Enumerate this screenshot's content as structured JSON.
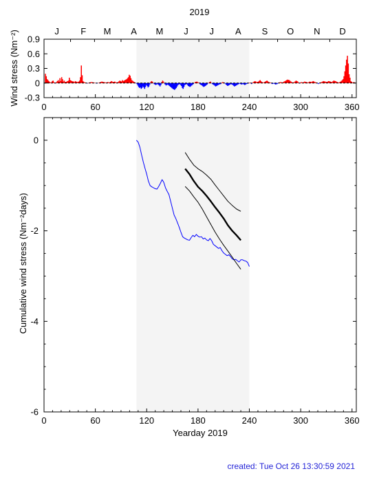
{
  "figure": {
    "year_title": "2019",
    "created_text": "created:  Tue Oct 26 13:30:59 2021",
    "colors": {
      "positive": "#ff0000",
      "negative": "#0000ff",
      "shade": "#f4f4f4",
      "observed_line": "#0000ff",
      "forecast_line": "#000000",
      "created_text": "#1f1fd6"
    }
  },
  "chart_data": [
    {
      "type": "bar",
      "name": "top",
      "title": "2019",
      "ylabel": "Wind stress (Nm⁻²)",
      "xlabel": "",
      "xlim": [
        0,
        365
      ],
      "ylim": [
        -0.3,
        0.9
      ],
      "xticks": [
        0,
        60,
        120,
        180,
        240,
        300,
        360
      ],
      "yticks": [
        -0.3,
        0,
        0.3,
        0.6,
        0.9
      ],
      "yticklabels": [
        "-0.3",
        "0",
        "0.3",
        "0.6",
        "0.9"
      ],
      "months": {
        "labels": [
          "J",
          "F",
          "M",
          "A",
          "M",
          "J",
          "J",
          "A",
          "S",
          "O",
          "N",
          "D"
        ],
        "label_days": [
          15,
          46,
          74,
          105,
          135,
          166,
          196,
          227,
          258,
          288,
          319,
          349
        ],
        "tick_days": [
          0,
          31,
          59,
          90,
          120,
          151,
          181,
          212,
          243,
          273,
          304,
          334,
          365
        ]
      },
      "shaded_x": [
        108,
        240
      ],
      "daily_points": [
        [
          1,
          0.19
        ],
        [
          2,
          0.14
        ],
        [
          3,
          0.08
        ],
        [
          5,
          0.04
        ],
        [
          6,
          0.02
        ],
        [
          8,
          0.01
        ],
        [
          9,
          0.04
        ],
        [
          10,
          0.05
        ],
        [
          11,
          0.02
        ],
        [
          12,
          -0.01
        ],
        [
          14,
          0.02
        ],
        [
          16,
          0.06
        ],
        [
          17,
          0.03
        ],
        [
          18,
          0.1
        ],
        [
          19,
          0.04
        ],
        [
          20,
          0.12
        ],
        [
          21,
          0.08
        ],
        [
          22,
          0.03
        ],
        [
          23,
          0.05
        ],
        [
          24,
          0.02
        ],
        [
          26,
          0.03
        ],
        [
          28,
          0.05
        ],
        [
          29,
          0.11
        ],
        [
          30,
          0.06
        ],
        [
          32,
          0.04
        ],
        [
          34,
          0.03
        ],
        [
          35,
          0.02
        ],
        [
          36,
          0.04
        ],
        [
          37,
          0.03
        ],
        [
          38,
          0.02
        ],
        [
          40,
          0.03
        ],
        [
          41,
          0.05
        ],
        [
          42,
          0.12
        ],
        [
          43,
          0.36
        ],
        [
          44,
          0.16
        ],
        [
          45,
          0.04
        ],
        [
          46,
          0.02
        ],
        [
          48,
          0.01
        ],
        [
          50,
          -0.01
        ],
        [
          52,
          0.01
        ],
        [
          55,
          0.02
        ],
        [
          58,
          0.01
        ],
        [
          61,
          -0.01
        ],
        [
          64,
          0.01
        ],
        [
          67,
          0.03
        ],
        [
          69,
          0.02
        ],
        [
          72,
          0.01
        ],
        [
          74,
          0.02
        ],
        [
          76,
          0.01
        ],
        [
          78,
          0.04
        ],
        [
          80,
          0.02
        ],
        [
          82,
          0.03
        ],
        [
          84,
          0.01
        ],
        [
          86,
          0.02
        ],
        [
          88,
          0.05
        ],
        [
          90,
          0.03
        ],
        [
          91,
          0.06
        ],
        [
          92,
          0.04
        ],
        [
          94,
          0.06
        ],
        [
          96,
          0.08
        ],
        [
          98,
          0.12
        ],
        [
          99,
          0.17
        ],
        [
          100,
          0.15
        ],
        [
          101,
          0.1
        ],
        [
          102,
          0.06
        ],
        [
          104,
          0.03
        ],
        [
          106,
          0.01
        ],
        [
          108,
          -0.02
        ],
        [
          109,
          -0.05
        ],
        [
          110,
          -0.08
        ],
        [
          111,
          -0.1
        ],
        [
          112,
          -0.09
        ],
        [
          113,
          -0.12
        ],
        [
          114,
          -0.1
        ],
        [
          115,
          -0.07
        ],
        [
          116,
          -0.09
        ],
        [
          117,
          -0.12
        ],
        [
          118,
          -0.08
        ],
        [
          119,
          -0.04
        ],
        [
          120,
          -0.06
        ],
        [
          121,
          -0.09
        ],
        [
          122,
          -0.07
        ],
        [
          123,
          -0.03
        ],
        [
          124,
          0.02
        ],
        [
          125,
          0.04
        ],
        [
          126,
          0.03
        ],
        [
          127,
          0.01
        ],
        [
          128,
          -0.02
        ],
        [
          130,
          -0.04
        ],
        [
          132,
          -0.02
        ],
        [
          134,
          -0.05
        ],
        [
          135,
          -0.07
        ],
        [
          136,
          -0.04
        ],
        [
          137,
          0.02
        ],
        [
          138,
          0.05
        ],
        [
          139,
          0.03
        ],
        [
          140,
          -0.01
        ],
        [
          141,
          -0.03
        ],
        [
          142,
          -0.05
        ],
        [
          144,
          -0.03
        ],
        [
          146,
          -0.06
        ],
        [
          148,
          -0.09
        ],
        [
          150,
          -0.12
        ],
        [
          151,
          -0.13
        ],
        [
          152,
          -0.14
        ],
        [
          153,
          -0.12
        ],
        [
          154,
          -0.1
        ],
        [
          155,
          -0.07
        ],
        [
          156,
          -0.04
        ],
        [
          158,
          -0.02
        ],
        [
          160,
          -0.06
        ],
        [
          161,
          -0.1
        ],
        [
          162,
          -0.12
        ],
        [
          163,
          -0.08
        ],
        [
          164,
          -0.04
        ],
        [
          166,
          -0.02
        ],
        [
          168,
          -0.06
        ],
        [
          170,
          -0.08
        ],
        [
          172,
          -0.05
        ],
        [
          174,
          -0.02
        ],
        [
          176,
          0.02
        ],
        [
          178,
          0.03
        ],
        [
          180,
          0.01
        ],
        [
          182,
          -0.03
        ],
        [
          184,
          -0.05
        ],
        [
          186,
          -0.08
        ],
        [
          188,
          -0.06
        ],
        [
          190,
          -0.03
        ],
        [
          192,
          0.01
        ],
        [
          194,
          0.03
        ],
        [
          196,
          -0.02
        ],
        [
          198,
          -0.04
        ],
        [
          200,
          -0.07
        ],
        [
          202,
          -0.05
        ],
        [
          204,
          -0.03
        ],
        [
          206,
          -0.02
        ],
        [
          208,
          0.02
        ],
        [
          210,
          0.01
        ],
        [
          212,
          -0.03
        ],
        [
          214,
          -0.06
        ],
        [
          216,
          -0.04
        ],
        [
          218,
          -0.02
        ],
        [
          220,
          -0.04
        ],
        [
          222,
          -0.07
        ],
        [
          224,
          -0.05
        ],
        [
          226,
          -0.03
        ],
        [
          228,
          -0.01
        ],
        [
          230,
          -0.03
        ],
        [
          232,
          -0.02
        ],
        [
          234,
          -0.04
        ],
        [
          236,
          -0.02
        ],
        [
          238,
          -0.01
        ],
        [
          240,
          0.01
        ],
        [
          242,
          -0.02
        ],
        [
          244,
          0.02
        ],
        [
          246,
          0.04
        ],
        [
          248,
          0.02
        ],
        [
          250,
          0.03
        ],
        [
          252,
          0.06
        ],
        [
          253,
          0.04
        ],
        [
          254,
          0.02
        ],
        [
          256,
          0.01
        ],
        [
          258,
          0.03
        ],
        [
          260,
          0.05
        ],
        [
          262,
          0.02
        ],
        [
          264,
          0.01
        ],
        [
          266,
          -0.02
        ],
        [
          268,
          -0.01
        ],
        [
          270,
          -0.03
        ],
        [
          272,
          -0.02
        ],
        [
          274,
          0.01
        ],
        [
          276,
          0.02
        ],
        [
          278,
          0.01
        ],
        [
          280,
          0.03
        ],
        [
          282,
          0.05
        ],
        [
          284,
          0.07
        ],
        [
          286,
          0.06
        ],
        [
          288,
          0.03
        ],
        [
          290,
          0.01
        ],
        [
          292,
          0.02
        ],
        [
          294,
          0.05
        ],
        [
          296,
          0.03
        ],
        [
          298,
          -0.01
        ],
        [
          300,
          0.02
        ],
        [
          302,
          0.01
        ],
        [
          304,
          0.03
        ],
        [
          306,
          0.02
        ],
        [
          308,
          0.01
        ],
        [
          310,
          0.03
        ],
        [
          312,
          0.02
        ],
        [
          314,
          0.04
        ],
        [
          316,
          0.02
        ],
        [
          318,
          0.01
        ],
        [
          320,
          -0.02
        ],
        [
          322,
          0.01
        ],
        [
          324,
          0.02
        ],
        [
          326,
          0.04
        ],
        [
          328,
          0.03
        ],
        [
          330,
          0.02
        ],
        [
          332,
          0.04
        ],
        [
          334,
          0.03
        ],
        [
          336,
          0.02
        ],
        [
          338,
          0.05
        ],
        [
          340,
          0.04
        ],
        [
          342,
          0.02
        ],
        [
          344,
          0.01
        ],
        [
          346,
          0.03
        ],
        [
          348,
          0.06
        ],
        [
          349,
          0.08
        ],
        [
          350,
          0.14
        ],
        [
          351,
          0.24
        ],
        [
          352,
          0.36
        ],
        [
          353,
          0.48
        ],
        [
          354,
          0.56
        ],
        [
          355,
          0.4
        ],
        [
          356,
          0.18
        ],
        [
          358,
          0.04
        ],
        [
          360,
          0.01
        ],
        [
          362,
          0.02
        ]
      ]
    },
    {
      "type": "line",
      "name": "bottom",
      "title": "",
      "ylabel": "Cumulative wind stress (Nm⁻²days)",
      "xlabel": "Yearday 2019",
      "xlim": [
        0,
        365
      ],
      "ylim": [
        -6,
        0.5
      ],
      "xticks": [
        0,
        60,
        120,
        180,
        240,
        300,
        360
      ],
      "yticks": [
        -6,
        -4,
        -2,
        0
      ],
      "yticklabels": [
        "-6",
        "-4",
        "-2",
        "0"
      ],
      "shaded_x": [
        108,
        240
      ],
      "series": [
        {
          "role": "observed",
          "x": [
            108,
            110,
            112,
            114,
            116,
            118,
            120,
            122,
            124,
            126,
            128,
            130,
            132,
            134,
            136,
            138,
            140,
            142,
            144,
            146,
            148,
            150,
            152,
            154,
            156,
            158,
            160,
            162,
            164,
            166,
            168,
            170,
            172,
            174,
            176,
            178,
            180,
            182,
            184,
            186,
            188,
            190,
            192,
            194,
            196,
            198,
            200,
            202,
            204,
            206,
            208,
            210,
            212,
            214,
            216,
            218,
            220,
            222,
            224,
            226,
            228,
            230,
            232,
            234,
            236,
            238,
            240
          ],
          "y": [
            0.0,
            -0.04,
            -0.15,
            -0.32,
            -0.48,
            -0.62,
            -0.75,
            -0.9,
            -1.0,
            -1.03,
            -1.05,
            -1.07,
            -1.08,
            -1.02,
            -0.95,
            -0.87,
            -0.93,
            -1.05,
            -1.13,
            -1.2,
            -1.35,
            -1.5,
            -1.65,
            -1.73,
            -1.82,
            -1.92,
            -2.03,
            -2.13,
            -2.16,
            -2.18,
            -2.2,
            -2.21,
            -2.15,
            -2.1,
            -2.13,
            -2.08,
            -2.12,
            -2.14,
            -2.13,
            -2.18,
            -2.16,
            -2.2,
            -2.22,
            -2.17,
            -2.22,
            -2.3,
            -2.33,
            -2.36,
            -2.39,
            -2.37,
            -2.44,
            -2.49,
            -2.52,
            -2.55,
            -2.53,
            -2.57,
            -2.62,
            -2.64,
            -2.63,
            -2.66,
            -2.69,
            -2.64,
            -2.64,
            -2.66,
            -2.67,
            -2.7,
            -2.79
          ]
        },
        {
          "role": "forecast-mean",
          "x": [
            165,
            170,
            175,
            180,
            185,
            190,
            195,
            200,
            205,
            210,
            215,
            220,
            225,
            230
          ],
          "y": [
            -0.63,
            -0.75,
            -0.9,
            -1.03,
            -1.12,
            -1.23,
            -1.35,
            -1.48,
            -1.6,
            -1.73,
            -1.88,
            -2.0,
            -2.1,
            -2.21
          ]
        },
        {
          "role": "forecast-upper",
          "x": [
            165,
            170,
            175,
            180,
            185,
            190,
            195,
            200,
            205,
            210,
            215,
            220,
            225,
            230
          ],
          "y": [
            -0.27,
            -0.42,
            -0.55,
            -0.63,
            -0.69,
            -0.77,
            -0.86,
            -0.99,
            -1.11,
            -1.23,
            -1.35,
            -1.44,
            -1.52,
            -1.57
          ]
        },
        {
          "role": "forecast-lower",
          "x": [
            165,
            170,
            175,
            180,
            185,
            190,
            195,
            200,
            205,
            210,
            215,
            220,
            225,
            230
          ],
          "y": [
            -1.02,
            -1.12,
            -1.25,
            -1.37,
            -1.52,
            -1.69,
            -1.86,
            -2.03,
            -2.18,
            -2.32,
            -2.45,
            -2.58,
            -2.72,
            -2.85
          ]
        }
      ]
    }
  ]
}
